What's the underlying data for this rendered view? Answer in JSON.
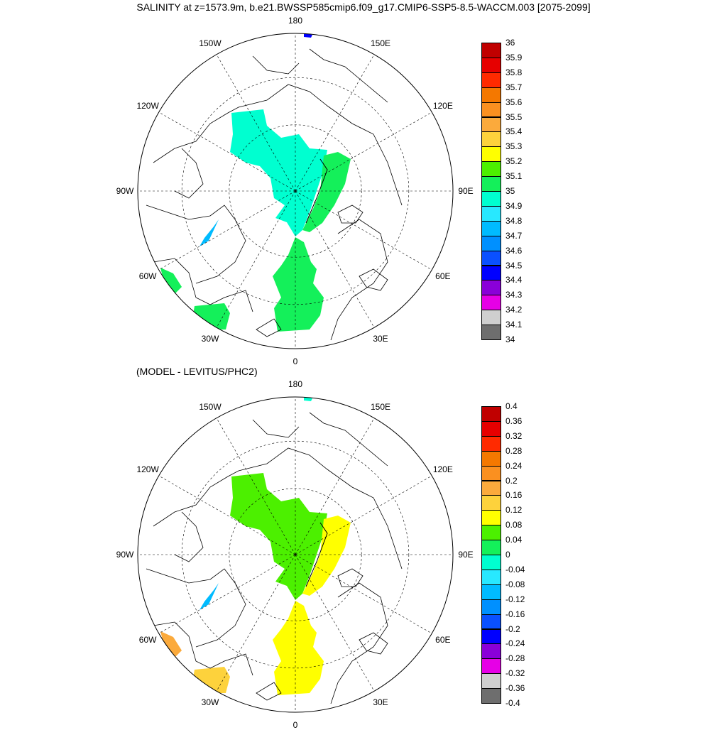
{
  "title": "SALINITY at z=1573.9m, b.e21.BWSSP585cmip6.f09_g17.CMIP6-SSP5-8.5-WACCM.003 [2075-2099]",
  "subtitle": "(MODEL - LEVITUS/PHC2)",
  "longitude_labels": [
    "180",
    "150E",
    "120E",
    "90E",
    "60E",
    "30E",
    "0",
    "30W",
    "60W",
    "90W",
    "120W",
    "150W"
  ],
  "colors": {
    "land_outline": "#000000",
    "background": "#ffffff"
  },
  "top_map": {
    "colorbar": {
      "labels": [
        "36",
        "35.9",
        "35.8",
        "35.7",
        "35.6",
        "35.5",
        "35.4",
        "35.3",
        "35.2",
        "35.1",
        "35",
        "34.9",
        "34.8",
        "34.7",
        "34.6",
        "34.5",
        "34.4",
        "34.3",
        "34.2",
        "34.1",
        "34"
      ],
      "colors": [
        "#c00000",
        "#e60000",
        "#ff2a00",
        "#f47800",
        "#fa9020",
        "#fbaa3c",
        "#fdd23c",
        "#ffff00",
        "#4cf000",
        "#14f05a",
        "#00ffd0",
        "#28e8ff",
        "#00bbff",
        "#0090ff",
        "#0a50ff",
        "#0000ff",
        "#8a00d8",
        "#e600e6",
        "#cfcfcf",
        "#6e6e6e"
      ]
    },
    "fields": [
      {
        "name": "central-arctic",
        "color": "#00ffd0"
      },
      {
        "name": "eurasian-basin",
        "color": "#14f05a"
      },
      {
        "name": "nordic-seas",
        "color": "#14f05a"
      },
      {
        "name": "baffin-bay",
        "color": "#00bbff"
      },
      {
        "name": "labrador-sea",
        "color": "#14f05a"
      },
      {
        "name": "irminger-sea",
        "color": "#14f05a"
      },
      {
        "name": "bering-patch",
        "color": "#0000ff"
      }
    ]
  },
  "bottom_map": {
    "colorbar": {
      "labels": [
        "0.4",
        "0.36",
        "0.32",
        "0.28",
        "0.24",
        "0.2",
        "0.16",
        "0.12",
        "0.08",
        "0.04",
        "0",
        "-0.04",
        "-0.08",
        "-0.12",
        "-0.16",
        "-0.2",
        "-0.24",
        "-0.28",
        "-0.32",
        "-0.36",
        "-0.4"
      ],
      "colors": [
        "#c00000",
        "#e60000",
        "#ff2a00",
        "#f47800",
        "#fa9020",
        "#fbaa3c",
        "#fdd23c",
        "#ffff00",
        "#4cf000",
        "#14f05a",
        "#00ffd0",
        "#28e8ff",
        "#00bbff",
        "#0090ff",
        "#0a50ff",
        "#0000ff",
        "#8a00d8",
        "#e600e6",
        "#cfcfcf",
        "#6e6e6e"
      ]
    },
    "fields": [
      {
        "name": "central-arctic",
        "color": "#4cf000"
      },
      {
        "name": "eurasian-basin",
        "color": "#ffff00"
      },
      {
        "name": "nordic-seas",
        "color": "#ffff00"
      },
      {
        "name": "baffin-bay",
        "color": "#00bbff"
      },
      {
        "name": "labrador-sea",
        "color": "#fbaa3c"
      },
      {
        "name": "irminger-sea",
        "color": "#fdd23c"
      },
      {
        "name": "bering-patch",
        "color": "#00ffd0"
      }
    ]
  }
}
